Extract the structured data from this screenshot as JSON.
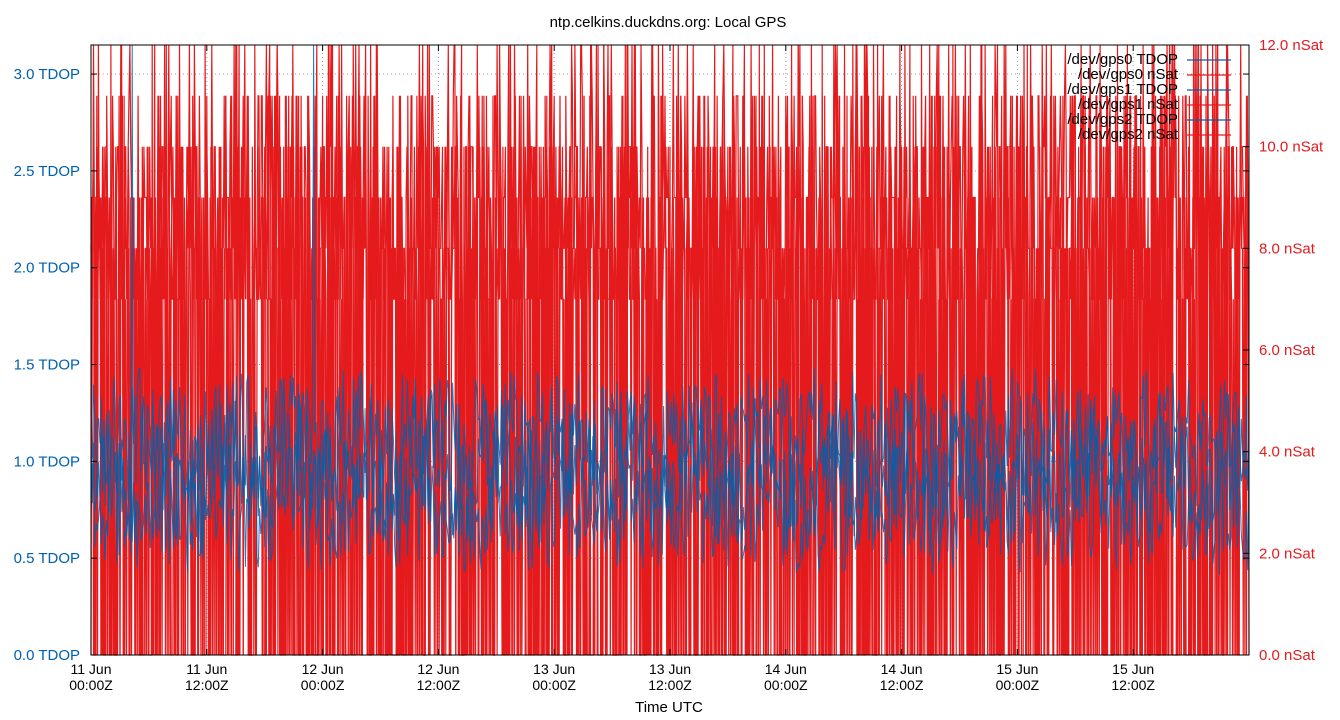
{
  "chart_data": {
    "type": "line",
    "title": "ntp.celkins.duckdns.org: Local GPS",
    "xlabel": "Time UTC",
    "y_left": {
      "ticks": [
        "0.0 TDOP",
        "0.5 TDOP",
        "1.0 TDOP",
        "1.5 TDOP",
        "2.0 TDOP",
        "2.5 TDOP",
        "3.0 TDOP"
      ],
      "range": [
        0,
        3.15
      ],
      "color": "#0060ad"
    },
    "y_right": {
      "ticks": [
        "0.0 nSat",
        "2.0 nSat",
        "4.0 nSat",
        "6.0 nSat",
        "8.0 nSat",
        "10.0 nSat",
        "12.0 nSat"
      ],
      "range": [
        0,
        12
      ],
      "color": "#e41a1c"
    },
    "x_ticks": [
      {
        "day": "11 Jun",
        "time": "00:00Z"
      },
      {
        "day": "11 Jun",
        "time": "12:00Z"
      },
      {
        "day": "12 Jun",
        "time": "00:00Z"
      },
      {
        "day": "12 Jun",
        "time": "12:00Z"
      },
      {
        "day": "13 Jun",
        "time": "00:00Z"
      },
      {
        "day": "13 Jun",
        "time": "12:00Z"
      },
      {
        "day": "14 Jun",
        "time": "00:00Z"
      },
      {
        "day": "14 Jun",
        "time": "12:00Z"
      },
      {
        "day": "15 Jun",
        "time": "00:00Z"
      },
      {
        "day": "15 Jun",
        "time": "12:00Z"
      }
    ],
    "x_range_hours": [
      0,
      120
    ],
    "grid": true,
    "legend_position": "top-right",
    "series": [
      {
        "name": "/dev/gps0 TDOP",
        "axis": "left",
        "color": "#0060ad",
        "typical_range": [
          0.5,
          1.4
        ],
        "peak": 3.15
      },
      {
        "name": "/dev/gps0 nSat",
        "axis": "right",
        "color": "#e41a1c",
        "levels": [
          0,
          7,
          8,
          9,
          10,
          11,
          12
        ]
      },
      {
        "name": "/dev/gps1 TDOP",
        "axis": "left",
        "color": "#0060ad",
        "typical_range": [
          0.5,
          1.4
        ]
      },
      {
        "name": "/dev/gps1 nSat",
        "axis": "right",
        "color": "#e41a1c",
        "levels": [
          0,
          7,
          8,
          9,
          10,
          11,
          12
        ]
      },
      {
        "name": "/dev/gps2 TDOP",
        "axis": "left",
        "color": "#0060ad",
        "typical_range": [
          0.5,
          1.4
        ]
      },
      {
        "name": "/dev/gps2 nSat",
        "axis": "right",
        "color": "#e41a1c",
        "levels": [
          0,
          7,
          8,
          9,
          10,
          11,
          12
        ]
      }
    ]
  }
}
